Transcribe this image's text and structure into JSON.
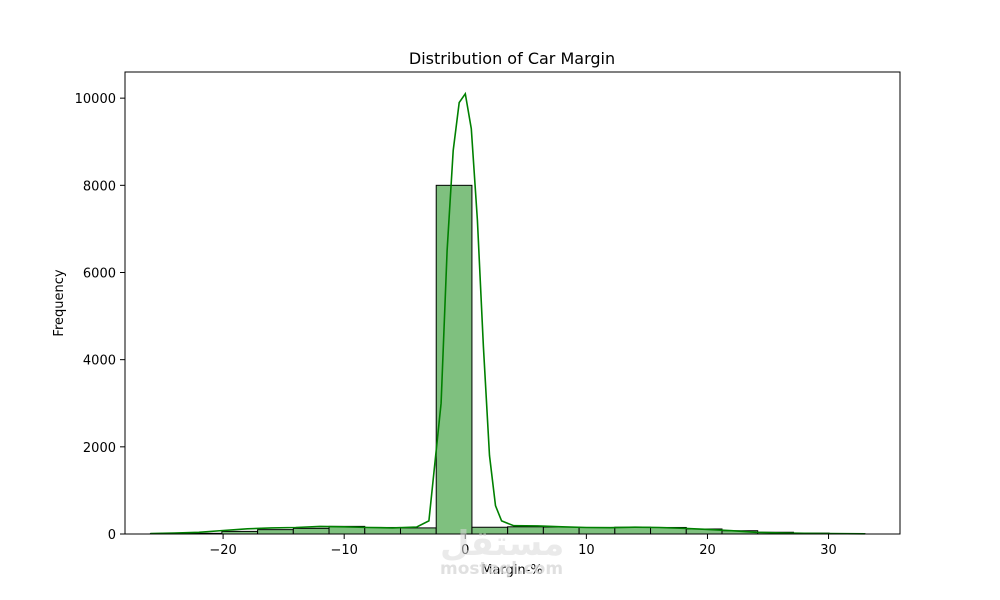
{
  "chart_data": {
    "type": "bar",
    "title": "Distribution of Car Margin",
    "xlabel": "Margin-%",
    "ylabel": "Frequency",
    "xlim": [
      -28.1,
      35.9
    ],
    "ylim": [
      0,
      10600
    ],
    "x_ticks": [
      -20,
      -10,
      0,
      10,
      20,
      30
    ],
    "x_tick_labels": [
      "−20",
      "−10",
      "0",
      "10",
      "20",
      "30"
    ],
    "y_ticks": [
      0,
      2000,
      4000,
      6000,
      8000,
      10000
    ],
    "y_tick_labels": [
      "0",
      "2000",
      "4000",
      "6000",
      "8000",
      "10000"
    ],
    "bin_edges": [
      -26.0,
      -23.05,
      -20.1,
      -17.15,
      -14.2,
      -11.25,
      -8.3,
      -5.35,
      -2.4,
      0.55,
      3.5,
      6.45,
      9.4,
      12.35,
      15.3,
      18.25,
      21.2,
      24.15,
      27.1,
      30.05,
      33.0
    ],
    "bin_counts": [
      10,
      15,
      60,
      100,
      130,
      175,
      150,
      140,
      8000,
      155,
      165,
      160,
      150,
      155,
      150,
      115,
      75,
      40,
      20,
      10
    ],
    "kde": {
      "x": [
        -26,
        -24,
        -22,
        -20,
        -18,
        -16,
        -14,
        -12,
        -10,
        -8,
        -6,
        -4,
        -3,
        -2,
        -1.5,
        -1,
        -0.5,
        0,
        0.5,
        1,
        1.5,
        2,
        2.5,
        3,
        4,
        6,
        8,
        10,
        12,
        14,
        16,
        18,
        20,
        22,
        24,
        26,
        28,
        30,
        33
      ],
      "y": [
        10,
        20,
        40,
        80,
        120,
        140,
        150,
        175,
        165,
        150,
        140,
        160,
        300,
        3000,
        6500,
        8800,
        9900,
        10100,
        9300,
        7200,
        4300,
        1800,
        650,
        300,
        190,
        185,
        165,
        150,
        145,
        155,
        150,
        130,
        105,
        75,
        40,
        25,
        15,
        10,
        5
      ]
    },
    "bar_color": "#7fc07f",
    "bar_edge_color": "#000000",
    "kde_color": "#008000",
    "grid": false,
    "legend": "none"
  },
  "watermark": {
    "logo_text": "مستقل",
    "text": "mostaql.com"
  }
}
